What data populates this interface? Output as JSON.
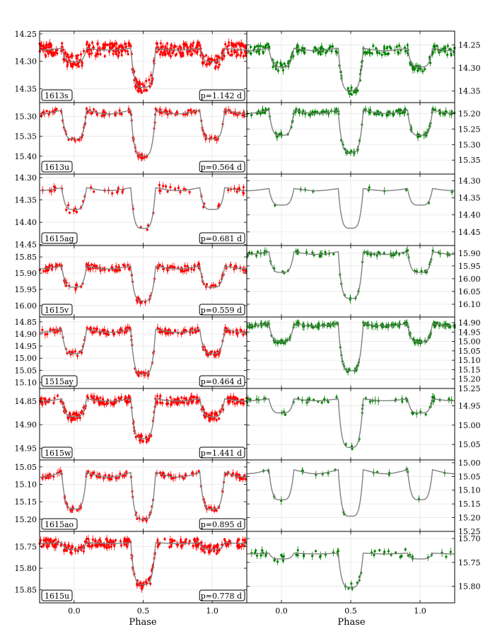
{
  "chart_data": {
    "type": "scatter",
    "xlabel": "Phase",
    "xlim": [
      -0.25,
      1.25
    ],
    "xticks": [
      0.0,
      0.5,
      1.0
    ],
    "xtick_labels": [
      "0.0",
      "0.5",
      "1.0"
    ],
    "y_inverted": true,
    "grid": true,
    "colors": {
      "left": "#ff0000",
      "right": "#008000",
      "model": "#808080"
    },
    "rows": [
      {
        "name": "1613s",
        "period": "p=1.142 d",
        "left": {
          "ylim": [
            14.245,
            14.375
          ],
          "yticks": [
            14.25,
            14.3,
            14.35
          ],
          "ytick_labels": [
            "14.25",
            "14.30",
            "14.35"
          ],
          "base": 14.275,
          "sec": 14.305,
          "pri": 14.36,
          "noise": 0.012,
          "n": 400
        },
        "right": {
          "ylim": [
            14.22,
            14.375
          ],
          "yticks": [
            14.25,
            14.3,
            14.35
          ],
          "ytick_labels": [
            "14.25",
            "14.30",
            "14.35"
          ],
          "base": 14.255,
          "sec": 14.305,
          "pri": 14.365,
          "noise": 0.01,
          "n": 200
        }
      },
      {
        "name": "1613u",
        "period": "p=0.564 d",
        "left": {
          "ylim": [
            15.265,
            15.445
          ],
          "yticks": [
            15.3,
            15.35,
            15.4
          ],
          "ytick_labels": [
            "15.30",
            "15.35",
            "15.40"
          ],
          "base": 15.28,
          "sec": 15.37,
          "pri": 15.42,
          "noise": 0.006,
          "n": 150
        },
        "right": {
          "ylim": [
            15.165,
            15.395
          ],
          "yticks": [
            15.2,
            15.25,
            15.3,
            15.35
          ],
          "ytick_labels": [
            "15.20",
            "15.25",
            "15.30",
            "15.35"
          ],
          "base": 15.185,
          "sec": 15.285,
          "pri": 15.35,
          "noise": 0.006,
          "n": 160
        }
      },
      {
        "name": "1615ag",
        "period": "p=0.681 d",
        "left": {
          "ylim": [
            14.292,
            14.452
          ],
          "yticks": [
            14.3,
            14.35,
            14.4,
            14.45
          ],
          "ytick_labels": [
            "14.30",
            "14.35",
            "14.40",
            "14.45"
          ],
          "base": 14.32,
          "sec": 14.38,
          "pri": 14.43,
          "noise": 0.008,
          "n": 60
        },
        "right": {
          "ylim": [
            14.28,
            14.49
          ],
          "yticks": [
            14.3,
            14.35,
            14.4,
            14.45
          ],
          "ytick_labels": [
            "14.30",
            "14.35",
            "14.40",
            "14.45"
          ],
          "base": 14.32,
          "sec": 14.38,
          "pri": 14.46,
          "noise": 0.006,
          "n": 10
        }
      },
      {
        "name": "1615v",
        "period": "p=0.559 d",
        "left": {
          "ylim": [
            15.815,
            16.035
          ],
          "yticks": [
            15.85,
            15.9,
            15.95,
            16.0
          ],
          "ytick_labels": [
            "15.85",
            "15.90",
            "15.95",
            "16.00"
          ],
          "base": 15.875,
          "sec": 15.955,
          "pri": 16.005,
          "noise": 0.008,
          "n": 160
        },
        "right": {
          "ylim": [
            15.87,
            16.15
          ],
          "yticks": [
            15.9,
            15.95,
            16.0,
            16.05,
            16.1
          ],
          "ytick_labels": [
            "15.90",
            "15.95",
            "16.00",
            "16.05",
            "16.10"
          ],
          "base": 15.89,
          "sec": 15.99,
          "pri": 16.11,
          "noise": 0.008,
          "n": 80
        }
      },
      {
        "name": "1515ay",
        "period": "p=0.464 d",
        "left": {
          "ylim": [
            14.83,
            15.125
          ],
          "yticks": [
            14.85,
            14.9,
            14.95,
            15.0,
            15.05,
            15.1
          ],
          "ytick_labels": [
            "14.85",
            "14.90",
            "14.95",
            "15.00",
            "15.05",
            "15.10"
          ],
          "base": 14.875,
          "sec": 15.0,
          "pri": 15.1,
          "noise": 0.01,
          "n": 180
        },
        "right": {
          "ylim": [
            14.87,
            15.25
          ],
          "yticks": [
            14.9,
            14.95,
            15.0,
            15.05,
            15.1,
            15.15,
            15.2,
            15.25
          ],
          "ytick_labels": [
            "14.90",
            "14.95",
            "15.00",
            "15.05",
            "15.10",
            "15.15",
            "15.20",
            "15.25"
          ],
          "base": 14.9,
          "sec": 15.02,
          "pri": 15.2,
          "noise": 0.008,
          "n": 200
        }
      },
      {
        "name": "1615w",
        "period": "p=1.441 d",
        "left": {
          "ylim": [
            14.823,
            14.975
          ],
          "yticks": [
            14.85,
            14.9,
            14.95
          ],
          "ytick_labels": [
            "14.85",
            "14.90",
            "14.95"
          ],
          "base": 14.843,
          "sec": 14.89,
          "pri": 14.945,
          "noise": 0.008,
          "n": 280
        },
        "right": {
          "ylim": [
            14.905,
            15.09
          ],
          "yticks": [
            14.95,
            15.0,
            15.05
          ],
          "ytick_labels": [
            "14.95",
            "15.00",
            "15.05"
          ],
          "base": 14.93,
          "sec": 14.975,
          "pri": 15.08,
          "noise": 0.006,
          "n": 60
        }
      },
      {
        "name": "1615ao",
        "period": "p=0.895 d",
        "left": {
          "ylim": [
            15.03,
            15.235
          ],
          "yticks": [
            15.05,
            15.1,
            15.15,
            15.2
          ],
          "ytick_labels": [
            "15.05",
            "15.10",
            "15.15",
            "15.20"
          ],
          "base": 15.06,
          "sec": 15.19,
          "pri": 15.225,
          "noise": 0.006,
          "n": 150
        },
        "right": {
          "ylim": [
            14.99,
            15.25
          ],
          "yticks": [
            15.0,
            15.05,
            15.1,
            15.15,
            15.2,
            15.25
          ],
          "ytick_labels": [
            "15.00",
            "15.05",
            "15.10",
            "15.15",
            "15.20",
            "15.25"
          ],
          "base": 15.02,
          "sec": 15.155,
          "pri": 15.225,
          "noise": 0.004,
          "n": 20
        }
      },
      {
        "name": "1615u",
        "period": "p=0.778 d",
        "left": {
          "ylim": [
            15.715,
            15.88
          ],
          "yticks": [
            15.75,
            15.8,
            15.85
          ],
          "ytick_labels": [
            "15.75",
            "15.80",
            "15.85"
          ],
          "base": 15.74,
          "sec": 15.76,
          "pri": 15.855,
          "noise": 0.01,
          "n": 280
        },
        "right": {
          "ylim": [
            15.685,
            15.835
          ],
          "yticks": [
            15.7,
            15.75,
            15.8
          ],
          "ytick_labels": [
            "15.70",
            "15.75",
            "15.80"
          ],
          "base": 15.73,
          "sec": 15.745,
          "pri": 15.815,
          "noise": 0.008,
          "n": 60
        }
      }
    ]
  }
}
